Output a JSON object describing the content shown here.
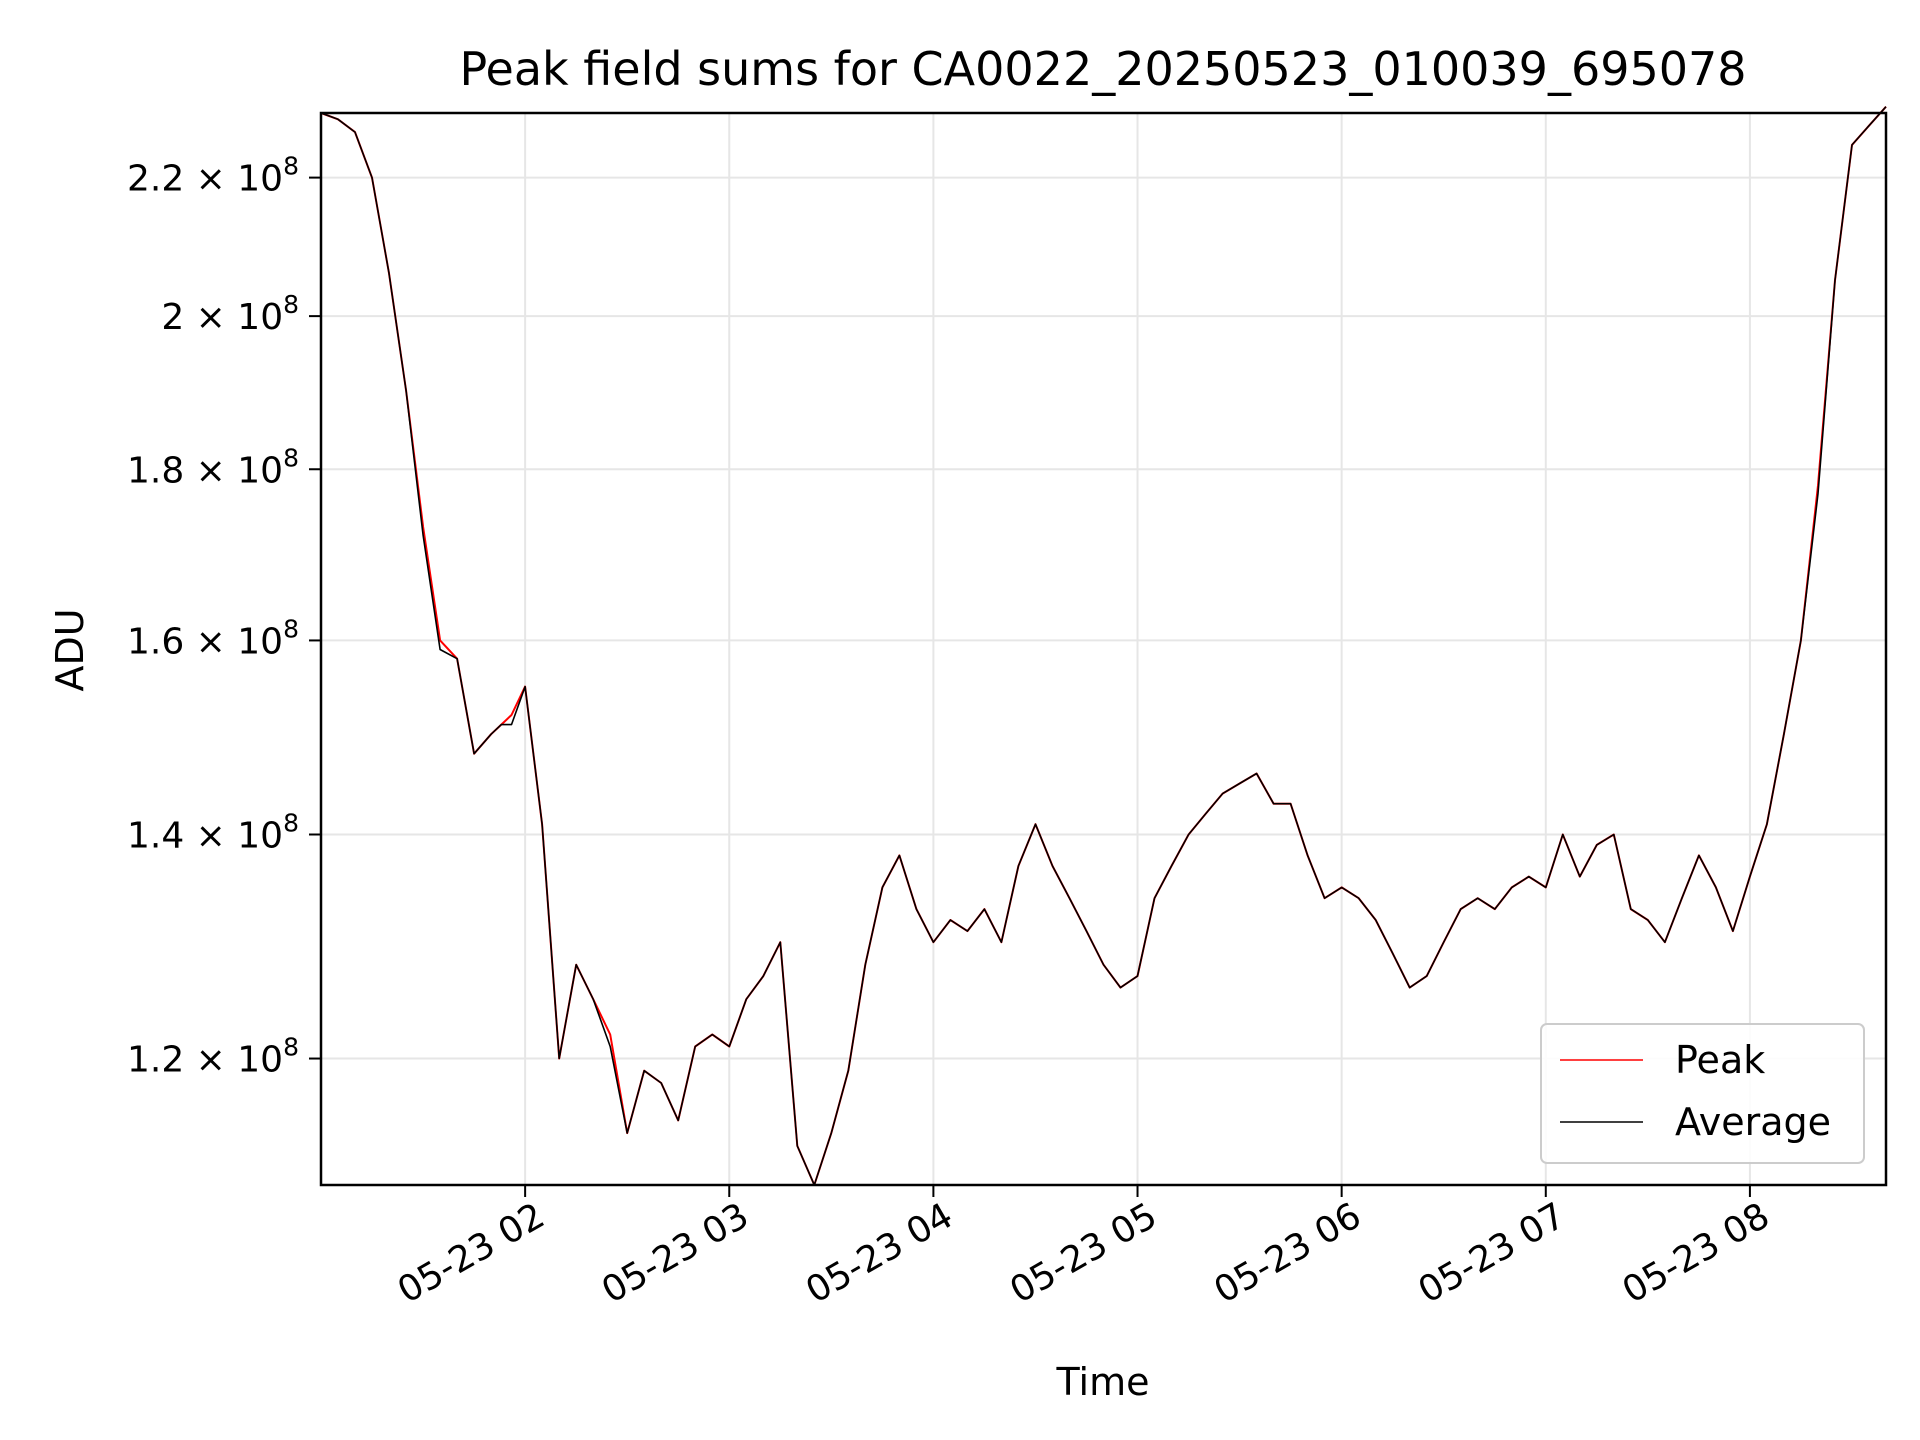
{
  "chart_data": {
    "type": "line",
    "title": "Peak field sums for CA0022_20250523_010039_695078",
    "xlabel": "Time",
    "ylabel": "ADU",
    "y_scale": "log",
    "grid": true,
    "legend_position": "lower-right",
    "x_tick_labels": [
      "05-23 02",
      "05-23 03",
      "05-23 04",
      "05-23 05",
      "05-23 06",
      "05-23 07",
      "05-23 08"
    ],
    "x_ticks": [
      "2025-05-23 02:00",
      "2025-05-23 03:00",
      "2025-05-23 04:00",
      "2025-05-23 05:00",
      "2025-05-23 06:00",
      "2025-05-23 07:00",
      "2025-05-23 08:00"
    ],
    "xlim": [
      "2025-05-23 01:00",
      "2025-05-23 08:40"
    ],
    "y_ticks": [
      120000000,
      140000000,
      160000000,
      180000000,
      200000000,
      220000000
    ],
    "y_tick_mantissas": [
      "1.2",
      "1.4",
      "1.6",
      "1.8",
      "2",
      "2.2"
    ],
    "y_tick_base": "10",
    "y_tick_exponent": "8",
    "ylim": [
      110000000,
      230000000
    ],
    "series": [
      {
        "name": "Peak",
        "color": "#ff0000"
      },
      {
        "name": "Average",
        "color": "#000000"
      }
    ],
    "x": [
      "2025-05-23 01:00",
      "2025-05-23 01:05",
      "2025-05-23 01:10",
      "2025-05-23 01:15",
      "2025-05-23 01:20",
      "2025-05-23 01:25",
      "2025-05-23 01:30",
      "2025-05-23 01:35",
      "2025-05-23 01:40",
      "2025-05-23 01:45",
      "2025-05-23 01:50",
      "2025-05-23 01:53",
      "2025-05-23 01:56",
      "2025-05-23 02:00",
      "2025-05-23 02:05",
      "2025-05-23 02:10",
      "2025-05-23 02:15",
      "2025-05-23 02:20",
      "2025-05-23 02:25",
      "2025-05-23 02:30",
      "2025-05-23 02:35",
      "2025-05-23 02:40",
      "2025-05-23 02:45",
      "2025-05-23 02:50",
      "2025-05-23 02:55",
      "2025-05-23 03:00",
      "2025-05-23 03:05",
      "2025-05-23 03:10",
      "2025-05-23 03:15",
      "2025-05-23 03:20",
      "2025-05-23 03:25",
      "2025-05-23 03:30",
      "2025-05-23 03:35",
      "2025-05-23 03:40",
      "2025-05-23 03:45",
      "2025-05-23 03:50",
      "2025-05-23 03:55",
      "2025-05-23 04:00",
      "2025-05-23 04:05",
      "2025-05-23 04:10",
      "2025-05-23 04:15",
      "2025-05-23 04:20",
      "2025-05-23 04:25",
      "2025-05-23 04:30",
      "2025-05-23 04:35",
      "2025-05-23 04:40",
      "2025-05-23 04:45",
      "2025-05-23 04:50",
      "2025-05-23 04:55",
      "2025-05-23 05:00",
      "2025-05-23 05:05",
      "2025-05-23 05:10",
      "2025-05-23 05:15",
      "2025-05-23 05:20",
      "2025-05-23 05:25",
      "2025-05-23 05:30",
      "2025-05-23 05:35",
      "2025-05-23 05:40",
      "2025-05-23 05:45",
      "2025-05-23 05:50",
      "2025-05-23 05:55",
      "2025-05-23 06:00",
      "2025-05-23 06:05",
      "2025-05-23 06:10",
      "2025-05-23 06:15",
      "2025-05-23 06:20",
      "2025-05-23 06:25",
      "2025-05-23 06:30",
      "2025-05-23 06:35",
      "2025-05-23 06:40",
      "2025-05-23 06:45",
      "2025-05-23 06:50",
      "2025-05-23 06:55",
      "2025-05-23 07:00",
      "2025-05-23 07:05",
      "2025-05-23 07:10",
      "2025-05-23 07:15",
      "2025-05-23 07:20",
      "2025-05-23 07:25",
      "2025-05-23 07:30",
      "2025-05-23 07:35",
      "2025-05-23 07:40",
      "2025-05-23 07:45",
      "2025-05-23 07:50",
      "2025-05-23 07:55",
      "2025-05-23 08:00",
      "2025-05-23 08:05",
      "2025-05-23 08:10",
      "2025-05-23 08:15",
      "2025-05-23 08:20",
      "2025-05-23 08:25",
      "2025-05-23 08:30",
      "2025-05-23 08:35",
      "2025-05-23 08:40"
    ],
    "values": {
      "Peak": [
        230,
        229,
        227,
        220,
        206,
        190,
        173,
        160,
        158,
        148,
        150,
        151,
        152,
        155,
        141,
        120,
        128,
        125,
        122,
        114,
        119,
        118,
        115,
        121,
        122,
        121,
        125,
        127,
        130,
        113,
        110,
        114,
        119,
        128,
        135,
        138,
        133,
        130,
        132,
        131,
        133,
        130,
        137,
        141,
        137,
        134,
        131,
        128,
        126,
        127,
        134,
        137,
        140,
        142,
        144,
        145,
        146,
        143,
        143,
        138,
        134,
        135,
        134,
        132,
        129,
        126,
        127,
        130,
        133,
        134,
        133,
        135,
        136,
        135,
        140,
        136,
        139,
        140,
        133,
        132,
        130,
        134,
        138,
        135,
        131,
        136,
        141,
        150,
        160,
        178,
        205,
        225,
        228,
        231
      ],
      "Average": [
        230,
        229,
        227,
        220,
        206,
        190,
        172,
        159,
        158,
        148,
        150,
        151,
        151,
        155,
        141,
        120,
        128,
        125,
        121,
        114,
        119,
        118,
        115,
        121,
        122,
        121,
        125,
        127,
        130,
        113,
        110,
        114,
        119,
        128,
        135,
        138,
        133,
        130,
        132,
        131,
        133,
        130,
        137,
        141,
        137,
        134,
        131,
        128,
        126,
        127,
        134,
        137,
        140,
        142,
        144,
        145,
        146,
        143,
        143,
        138,
        134,
        135,
        134,
        132,
        129,
        126,
        127,
        130,
        133,
        134,
        133,
        135,
        136,
        135,
        140,
        136,
        139,
        140,
        133,
        132,
        130,
        134,
        138,
        135,
        131,
        136,
        141,
        150,
        160,
        177,
        205,
        225,
        228,
        231
      ]
    },
    "values_unit": "1e6 ADU"
  }
}
